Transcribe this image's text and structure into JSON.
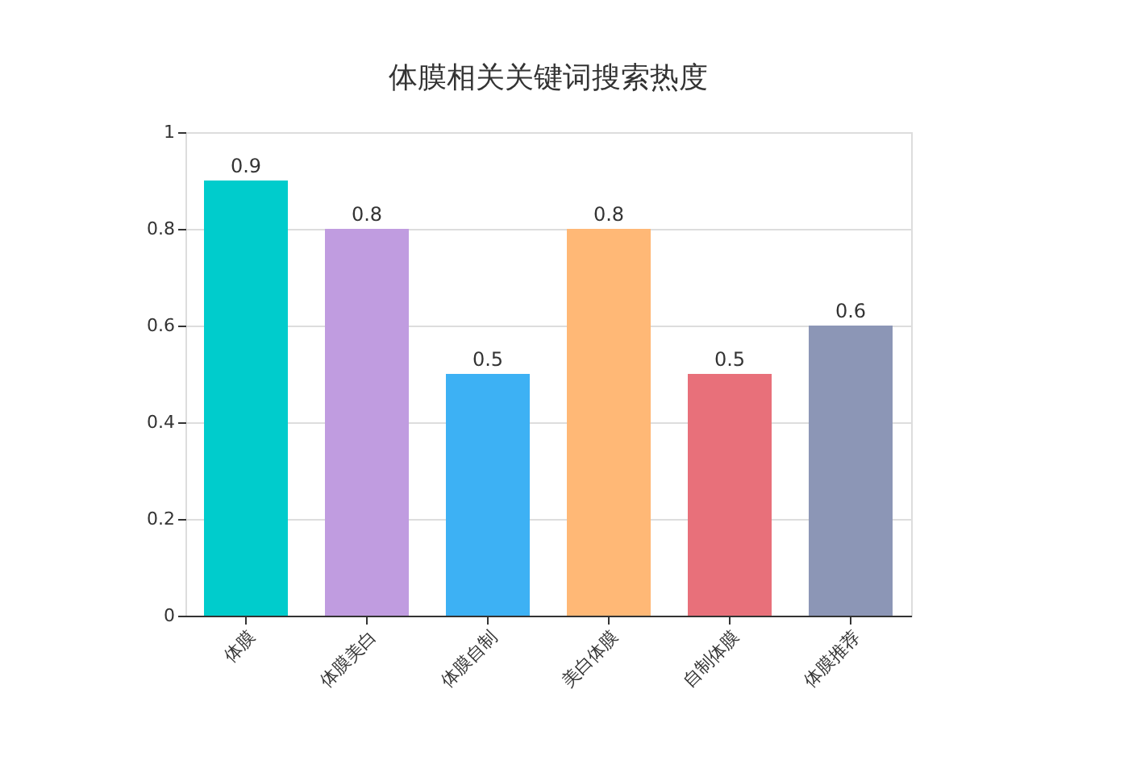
{
  "chart_data": {
    "type": "bar",
    "title": "体膜相关关键词搜索热度",
    "categories": [
      "体膜",
      "体膜美白",
      "体膜自制",
      "美白体膜",
      "自制体膜",
      "体膜推荐"
    ],
    "values": [
      0.9,
      0.8,
      0.5,
      0.8,
      0.5,
      0.6
    ],
    "colors": [
      "#00cccc",
      "#c09ce0",
      "#3db1f4",
      "#ffb876",
      "#e8707a",
      "#8c96b6"
    ],
    "ylim": [
      0,
      1
    ],
    "yticks": [
      0,
      0.2,
      0.4,
      0.6,
      0.8,
      1
    ],
    "grid": "y",
    "data_labels": true
  }
}
